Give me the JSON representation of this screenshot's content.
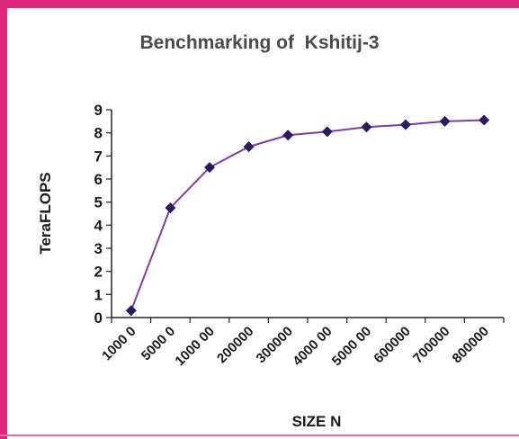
{
  "chart_data": {
    "type": "line",
    "title": "Benchmarking of  Kshitij-3",
    "xlabel": "SIZE N",
    "ylabel": "TeraFLOPS",
    "categories": [
      "1000 0",
      "5000 0",
      "1000 00",
      "200000",
      "300000",
      "4000 00",
      "5000 00",
      "600000",
      "700000",
      "800000"
    ],
    "series": [
      {
        "values": [
          0.3,
          4.75,
          6.5,
          7.4,
          7.9,
          8.05,
          8.25,
          8.35,
          8.5,
          8.55
        ]
      }
    ],
    "ylim": [
      0,
      9
    ],
    "yticks": [
      "0",
      "1",
      "2",
      "3",
      "4",
      "5",
      "6",
      "7",
      "8",
      "9"
    ],
    "grid": false,
    "legend": "none",
    "colors": {
      "line": "#7e3ea0",
      "marker": "#2a1a5e",
      "axis": "#222222",
      "frame_border": "#e0267a"
    }
  }
}
